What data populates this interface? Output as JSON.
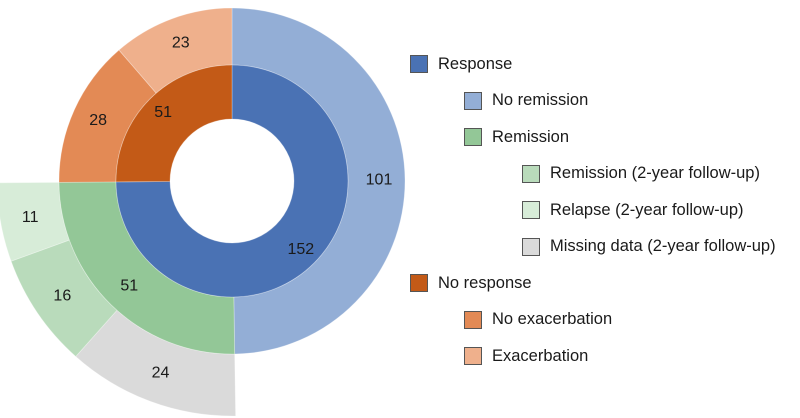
{
  "chart_data": {
    "type": "sunburst",
    "title": "",
    "rings": [
      {
        "level": 1,
        "segments": [
          {
            "label": "Response",
            "value": 152,
            "color": "#4a72b4"
          },
          {
            "label": "No response",
            "value": 51,
            "color": "#c35a17"
          }
        ]
      },
      {
        "level": 2,
        "segments": [
          {
            "label": "No remission",
            "parent": "Response",
            "value": 101,
            "color": "#93aed6"
          },
          {
            "label": "Remission",
            "parent": "Response",
            "value": 51,
            "color": "#93c797"
          },
          {
            "label": "No exacerbation",
            "parent": "No response",
            "value": 28,
            "color": "#e38a55"
          },
          {
            "label": "Exacerbation",
            "parent": "No response",
            "value": 23,
            "color": "#efb08c"
          }
        ]
      },
      {
        "level": 3,
        "segments": [
          {
            "label": "Missing data (2-year follow-up)",
            "parent": "Remission",
            "value": 24,
            "color": "#dadada"
          },
          {
            "label": "Remission (2-year follow-up)",
            "parent": "Remission",
            "value": 16,
            "color": "#b9dbbb"
          },
          {
            "label": "Relapse (2-year follow-up)",
            "parent": "Remission",
            "value": 11,
            "color": "#d7ecd8"
          }
        ]
      }
    ],
    "legend": {
      "placement": "right",
      "items": [
        {
          "label": "Response",
          "color": "#4a72b4",
          "level": 0
        },
        {
          "label": "No remission",
          "color": "#93aed6",
          "level": 1
        },
        {
          "label": "Remission",
          "color": "#93c797",
          "level": 1
        },
        {
          "label": "Remission (2-year follow-up)",
          "color": "#b9dbbb",
          "level": 2
        },
        {
          "label": "Relapse (2-year follow-up)",
          "color": "#d7ecd8",
          "level": 2
        },
        {
          "label": "Missing data (2-year follow-up)",
          "color": "#dadada",
          "level": 2
        },
        {
          "label": "No response",
          "color": "#c35a17",
          "level": 0
        },
        {
          "label": "No exacerbation",
          "color": "#e38a55",
          "level": 1
        },
        {
          "label": "Exacerbation",
          "color": "#efb08c",
          "level": 1
        }
      ]
    }
  }
}
